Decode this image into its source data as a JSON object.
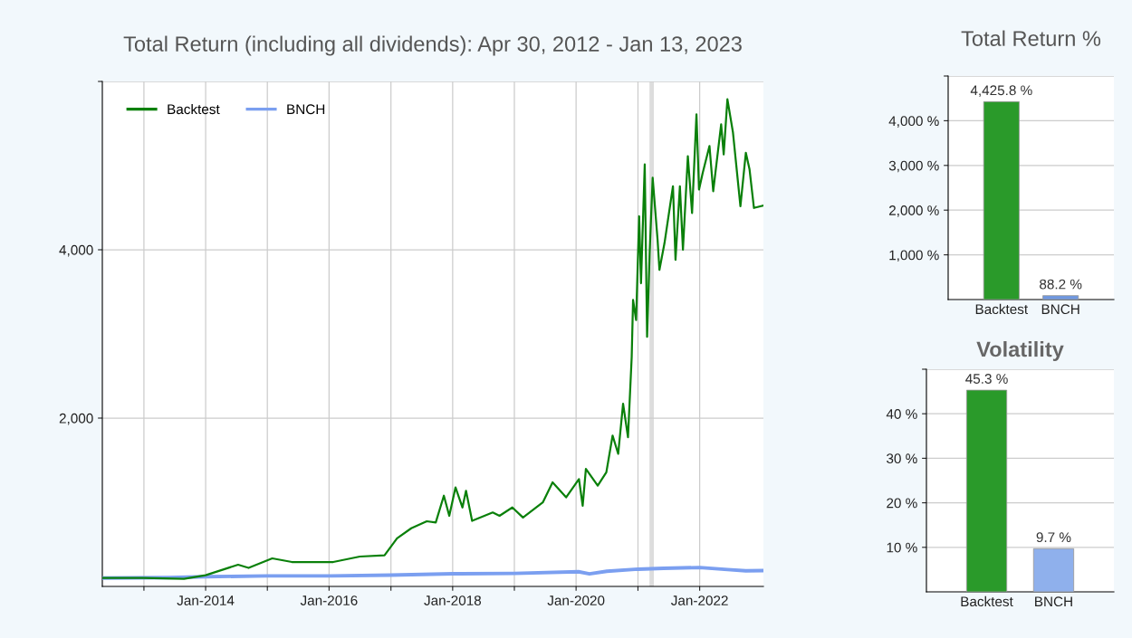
{
  "chart_data": [
    {
      "type": "line",
      "title": "Total Return (including all dividends): Apr 30, 2012 - Jan 13, 2023",
      "xlim": [
        "2012-04-30",
        "2023-01-13"
      ],
      "xticks": [
        {
          "value": "2013-01-01",
          "label": null
        },
        {
          "value": "2014-01-01",
          "label": "Jan-2014"
        },
        {
          "value": "2015-01-01",
          "label": null
        },
        {
          "value": "2016-01-01",
          "label": "Jan-2016"
        },
        {
          "value": "2017-01-01",
          "label": null
        },
        {
          "value": "2018-01-01",
          "label": "Jan-2018"
        },
        {
          "value": "2019-01-01",
          "label": null
        },
        {
          "value": "2020-01-01",
          "label": "Jan-2020"
        },
        {
          "value": "2021-01-01",
          "label": null
        },
        {
          "value": "2022-01-01",
          "label": "Jan-2022"
        }
      ],
      "ylim": [
        0,
        6000
      ],
      "yticks": [
        {
          "value": 2000,
          "label": "2,000"
        },
        {
          "value": 4000,
          "label": "4,000"
        },
        {
          "value": 6000,
          "label": null
        }
      ],
      "grid": true,
      "legend": "top left",
      "line_style": "solid",
      "bands": [
        {
          "axis": "x",
          "from": "2021-03-10",
          "to": "2021-04-05",
          "color": "#dddddd"
        }
      ],
      "series": [
        {
          "name": "Backtest",
          "color": "#0a800a",
          "x": [
            "2012-04-30",
            "2012-12-28",
            "2013-08-26",
            "2014-01-01",
            "2014-07-12",
            "2014-09-12",
            "2015-01-30",
            "2015-05-26",
            "2016-01-26",
            "2016-07-01",
            "2016-11-24",
            "2017-02-06",
            "2017-05-01",
            "2017-08-01",
            "2017-09-23",
            "2017-11-10",
            "2017-12-12",
            "2018-01-18",
            "2018-02-28",
            "2018-03-21",
            "2018-04-26",
            "2018-08-26",
            "2018-10-05",
            "2018-12-20",
            "2019-02-21",
            "2019-06-18",
            "2019-08-15",
            "2019-11-03",
            "2020-01-18",
            "2020-02-09",
            "2020-02-28",
            "2020-05-08",
            "2020-06-28",
            "2020-08-04",
            "2020-09-06",
            "2020-10-05",
            "2020-11-03",
            "2020-11-25",
            "2020-12-03",
            "2020-12-21",
            "2021-01-08",
            "2021-01-19",
            "2021-02-10",
            "2021-02-24",
            "2021-03-11",
            "2021-03-29",
            "2021-04-27",
            "2021-05-08",
            "2021-06-07",
            "2021-07-27",
            "2021-08-11",
            "2021-09-06",
            "2021-09-24",
            "2021-10-23",
            "2021-11-17",
            "2021-12-13",
            "2021-12-28",
            "2022-01-19",
            "2022-02-28",
            "2022-03-22",
            "2022-05-08",
            "2022-05-23",
            "2022-06-14",
            "2022-07-17",
            "2022-08-30",
            "2022-10-01",
            "2022-10-23",
            "2022-11-18",
            "2023-01-13"
          ],
          "values": [
            100,
            100,
            90,
            133,
            258,
            220,
            333,
            290,
            290,
            355,
            370,
            572,
            691,
            774,
            760,
            1078,
            839,
            1177,
            938,
            1137,
            779,
            879,
            839,
            938,
            819,
            998,
            1237,
            1058,
            1276,
            958,
            1396,
            1197,
            1356,
            1793,
            1575,
            2171,
            1773,
            2728,
            3404,
            3165,
            4398,
            3602,
            5014,
            2966,
            3960,
            4855,
            4119,
            3761,
            4080,
            4755,
            3881,
            4755,
            4000,
            5113,
            4437,
            5610,
            4716,
            4915,
            5233,
            4696,
            5491,
            5133,
            5789,
            5392,
            4517,
            5153,
            4954,
            4497,
            4526
          ]
        },
        {
          "name": "BNCH",
          "color": "#7b9ff0",
          "x": [
            "2012-04-30",
            "2013-06-01",
            "2014-01-01",
            "2015-01-01",
            "2016-01-15",
            "2017-01-01",
            "2018-01-01",
            "2019-01-01",
            "2020-01-15",
            "2020-03-20",
            "2020-07-01",
            "2021-01-01",
            "2021-06-01",
            "2022-01-01",
            "2022-06-15",
            "2022-10-01",
            "2023-01-13"
          ],
          "values": [
            100,
            105,
            115,
            125,
            125,
            135,
            150,
            155,
            175,
            150,
            180,
            205,
            215,
            225,
            200,
            185,
            188
          ]
        }
      ]
    },
    {
      "type": "bar",
      "title": "Total Return %",
      "categories": [
        "Backtest",
        "BNCH"
      ],
      "values": [
        4425.8,
        88.2
      ],
      "colors": [
        "#2a9a2a",
        "#6f97e0"
      ],
      "value_labels": [
        "4,425.8 %",
        "88.2 %"
      ],
      "ylim": [
        0,
        5000
      ],
      "yticks": [
        {
          "value": 1000,
          "label": "1,000 %"
        },
        {
          "value": 2000,
          "label": "2,000 %"
        },
        {
          "value": 3000,
          "label": "3,000 %"
        },
        {
          "value": 4000,
          "label": "4,000 %"
        },
        {
          "value": 5000,
          "label": null
        }
      ],
      "grid": "y"
    },
    {
      "type": "bar",
      "title": "Volatility",
      "categories": [
        "Backtest",
        "BNCH"
      ],
      "values": [
        45.3,
        9.7
      ],
      "colors": [
        "#2a9a2a",
        "#8fb0ec"
      ],
      "value_labels": [
        "45.3 %",
        "9.7 %"
      ],
      "ylim": [
        0,
        50
      ],
      "yticks": [
        {
          "value": 10,
          "label": "10 %"
        },
        {
          "value": 20,
          "label": "20 %"
        },
        {
          "value": 30,
          "label": "30 %"
        },
        {
          "value": 40,
          "label": "40 %"
        },
        {
          "value": 50,
          "label": null
        }
      ],
      "grid": "y"
    }
  ]
}
